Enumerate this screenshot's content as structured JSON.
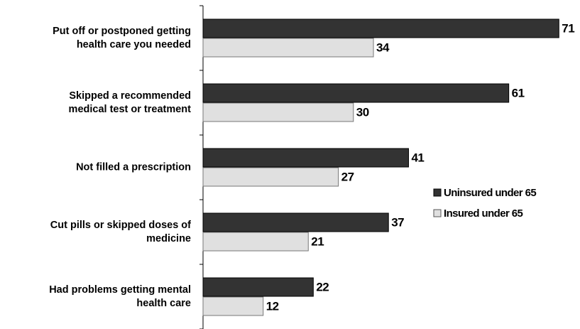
{
  "chart_data": {
    "type": "hbar",
    "categories": [
      "Put off or postponed getting\nhealth care you needed",
      "Skipped a recommended\nmedical test or treatment",
      "Not filled a prescription",
      "Cut pills or skipped doses of\nmedicine",
      "Had problems getting mental\nhealth care"
    ],
    "series": [
      {
        "name": "Uninsured under 65",
        "color": "#333333",
        "values": [
          71,
          61,
          41,
          37,
          22
        ]
      },
      {
        "name": "Insured under 65",
        "color": "#e0e0e0",
        "values": [
          34,
          30,
          27,
          21,
          12
        ]
      }
    ]
  }
}
